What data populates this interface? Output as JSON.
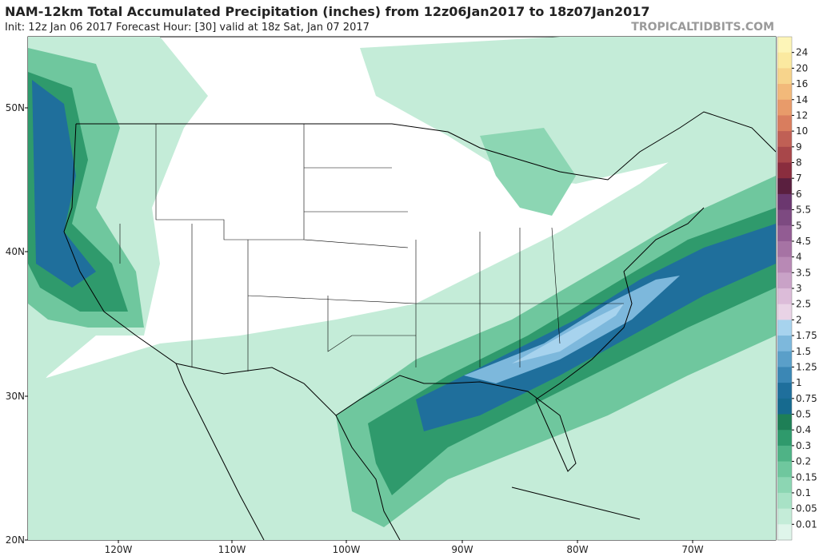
{
  "header": {
    "title": "NAM-12km Total Accumulated Precipitation (inches) from 12z06Jan2017 to 18z07Jan2017",
    "subtitle": "Init: 12z Jan 06 2017   Forecast Hour: [30]   valid at 18z Sat, Jan 07 2017",
    "site": "TROPICALTIDBITS.COM"
  },
  "map": {
    "lat_labels": [
      "50N",
      "40N",
      "30N",
      "20N"
    ],
    "lon_labels": [
      "120W",
      "110W",
      "100W",
      "90W",
      "80W",
      "70W"
    ]
  },
  "colorbar": {
    "labels": [
      24,
      20,
      16,
      14,
      12,
      10,
      9,
      8,
      7,
      6,
      5.5,
      5,
      4.5,
      4,
      3.5,
      3,
      2.5,
      2,
      1.75,
      1.5,
      1.25,
      1,
      0.75,
      0.5,
      0.4,
      0.3,
      0.2,
      0.15,
      0.1,
      0.05,
      0.01
    ],
    "colors": [
      "#fdf5b8",
      "#fbe9a0",
      "#f7d48c",
      "#f2b97a",
      "#e89b6a",
      "#d97d5e",
      "#c06055",
      "#a8474a",
      "#8a2d3e",
      "#5a1f3f",
      "#6b376f",
      "#7d4a81",
      "#925c93",
      "#a673a4",
      "#b889b5",
      "#c9a2c7",
      "#dcbcd9",
      "#e9d3e6",
      "#a7d3ee",
      "#7db8dc",
      "#5a9fc9",
      "#3b87b5",
      "#1f6f9c",
      "#166a8f",
      "#1e7f56",
      "#2f9a6c",
      "#4fb386",
      "#6fc79e",
      "#8cd6b3",
      "#a8e2c6",
      "#c4ecd8",
      "#dff5ea"
    ]
  }
}
